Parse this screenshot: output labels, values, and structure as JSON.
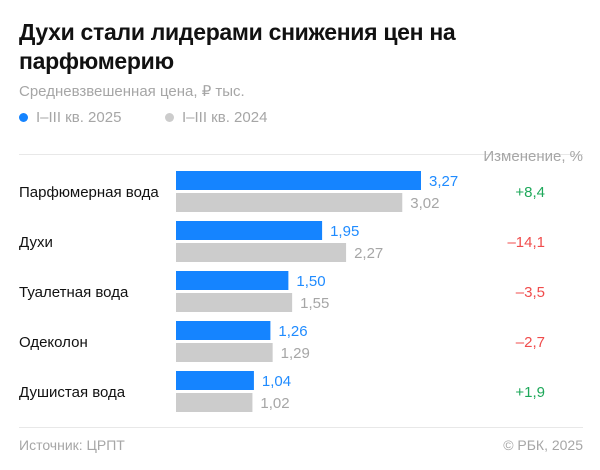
{
  "title": "Духи стали лидерами снижения цен на парфюмерию",
  "subtitle": "Средневзвешенная цена, ₽ тыс.",
  "change_header": "Изменение, %",
  "source": "Источник: ЦРПТ",
  "copyright": "© РБК, 2025",
  "colors": {
    "series_2025": "#1584ff",
    "series_2024": "#cccccc",
    "value_2025": "#1f8bff",
    "value_2024": "#a6a6a6",
    "positive": "#1ea85a",
    "negative": "#f04c4c"
  },
  "chart_data": {
    "type": "bar",
    "orientation": "horizontal",
    "categories": [
      "Парфюмерная вода",
      "Духи",
      "Туалетная вода",
      "Одеколон",
      "Душистая вода"
    ],
    "series": [
      {
        "name": "I–III кв. 2025",
        "values": [
          3.27,
          1.95,
          1.5,
          1.26,
          1.04
        ],
        "labels": [
          "3,27",
          "1,95",
          "1,50",
          "1,26",
          "1,04"
        ]
      },
      {
        "name": "I–III кв. 2024",
        "values": [
          3.02,
          2.27,
          1.55,
          1.29,
          1.02
        ],
        "labels": [
          "3,02",
          "2,27",
          "1,55",
          "1,29",
          "1,02"
        ]
      }
    ],
    "change": {
      "values": [
        8.4,
        -14.1,
        -3.5,
        -2.7,
        1.9
      ],
      "labels": [
        "+8,4",
        "–14,1",
        "–3,5",
        "–2,7",
        "+1,9"
      ]
    },
    "xlim": [
      0,
      3.27
    ],
    "grid": false,
    "legend_position": "top-left"
  }
}
